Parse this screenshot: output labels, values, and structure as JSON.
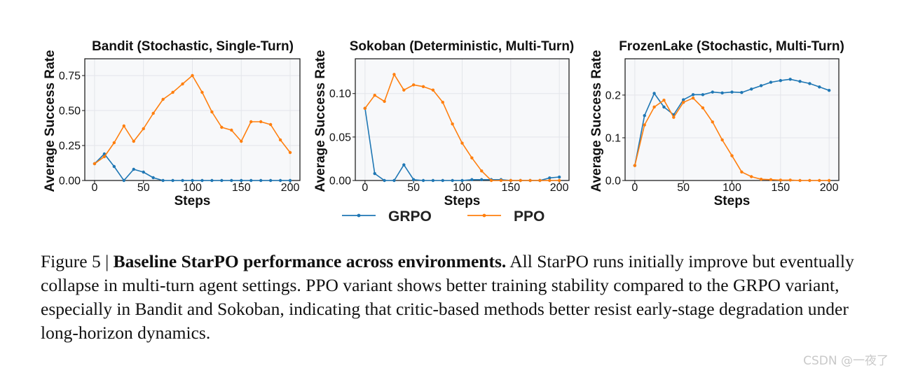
{
  "colors": {
    "grpo": "#1f77b4",
    "ppo": "#ff7f0e",
    "plot_bg": "#f7f8fa",
    "grid": "#e3e5ea"
  },
  "legend": [
    {
      "name": "GRPO",
      "color": "#1f77b4"
    },
    {
      "name": "PPO",
      "color": "#ff7f0e"
    }
  ],
  "chart_data": [
    {
      "type": "line",
      "title": "Bandit (Stochastic, Single-Turn)",
      "xlabel": "Steps",
      "ylabel": "Average Success Rate",
      "xlim": [
        -10,
        210
      ],
      "ylim": [
        0,
        0.87
      ],
      "xticks": [
        0,
        50,
        100,
        150,
        200
      ],
      "xtick_labels": [
        "0",
        "50",
        "100",
        "150",
        "200"
      ],
      "yticks": [
        0,
        0.25,
        0.5,
        0.75
      ],
      "ytick_labels": [
        "0.00",
        "0.25",
        "0.50",
        "0.75"
      ],
      "x": [
        0,
        10,
        20,
        30,
        40,
        50,
        60,
        70,
        80,
        90,
        100,
        110,
        120,
        130,
        140,
        150,
        160,
        170,
        180,
        190,
        200
      ],
      "series": [
        {
          "name": "GRPO",
          "values": [
            0.12,
            0.19,
            0.1,
            0.0,
            0.08,
            0.06,
            0.02,
            0.0,
            0.0,
            0.0,
            0.0,
            0.0,
            0.0,
            0.0,
            0.0,
            0.0,
            0.0,
            0.0,
            0.0,
            0.0,
            0.0
          ]
        },
        {
          "name": "PPO",
          "values": [
            0.12,
            0.17,
            0.27,
            0.39,
            0.28,
            0.37,
            0.48,
            0.58,
            0.63,
            0.69,
            0.75,
            0.63,
            0.49,
            0.38,
            0.36,
            0.28,
            0.42,
            0.42,
            0.4,
            0.29,
            0.2
          ]
        }
      ]
    },
    {
      "type": "line",
      "title": "Sokoban (Deterministic, Multi-Turn)",
      "xlabel": "Steps",
      "ylabel": "Average Success Rate",
      "xlim": [
        -10,
        210
      ],
      "ylim": [
        0,
        0.14
      ],
      "xticks": [
        0,
        50,
        100,
        150,
        200
      ],
      "xtick_labels": [
        "0",
        "50",
        "100",
        "150",
        "200"
      ],
      "yticks": [
        0,
        0.05,
        0.1
      ],
      "ytick_labels": [
        "0.00",
        "0.05",
        "0.10"
      ],
      "x": [
        0,
        10,
        20,
        30,
        40,
        50,
        60,
        70,
        80,
        90,
        100,
        110,
        120,
        130,
        140,
        150,
        160,
        170,
        180,
        190,
        200
      ],
      "series": [
        {
          "name": "GRPO",
          "values": [
            0.083,
            0.008,
            0.0,
            0.0,
            0.018,
            0.001,
            0.0,
            0.0,
            0.0,
            0.0,
            0.0,
            0.001,
            0.001,
            0.001,
            0.001,
            0.0,
            0.0,
            0.0,
            0.0,
            0.003,
            0.004
          ]
        },
        {
          "name": "PPO",
          "values": [
            0.083,
            0.098,
            0.091,
            0.122,
            0.104,
            0.11,
            0.108,
            0.104,
            0.09,
            0.065,
            0.043,
            0.026,
            0.011,
            0.0,
            0.0,
            0.0,
            0.0,
            0.0,
            0.0,
            0.0,
            0.0
          ]
        }
      ]
    },
    {
      "type": "line",
      "title": "FrozenLake (Stochastic, Multi-Turn)",
      "xlabel": "Steps",
      "ylabel": "Average Success Rate",
      "xlim": [
        -10,
        210
      ],
      "ylim": [
        0,
        0.285
      ],
      "xticks": [
        0,
        50,
        100,
        150,
        200
      ],
      "xtick_labels": [
        "0",
        "50",
        "100",
        "150",
        "200"
      ],
      "yticks": [
        0,
        0.1,
        0.2
      ],
      "ytick_labels": [
        "0.0",
        "0.1",
        "0.2"
      ],
      "x": [
        0,
        10,
        20,
        30,
        40,
        50,
        60,
        70,
        80,
        90,
        100,
        110,
        120,
        130,
        140,
        150,
        160,
        170,
        180,
        190,
        200
      ],
      "series": [
        {
          "name": "GRPO",
          "values": [
            0.035,
            0.152,
            0.204,
            0.172,
            0.154,
            0.189,
            0.201,
            0.201,
            0.207,
            0.205,
            0.207,
            0.206,
            0.214,
            0.222,
            0.23,
            0.234,
            0.237,
            0.232,
            0.227,
            0.219,
            0.211
          ]
        },
        {
          "name": "PPO",
          "values": [
            0.035,
            0.13,
            0.172,
            0.188,
            0.148,
            0.183,
            0.193,
            0.17,
            0.137,
            0.095,
            0.058,
            0.02,
            0.009,
            0.003,
            0.002,
            0.001,
            0.001,
            0.0,
            0.0,
            0.0,
            0.0
          ]
        }
      ]
    }
  ],
  "caption": {
    "prefix": "Figure 5 | ",
    "title": "Baseline StarPO performance across environments.",
    "body": " All StarPO runs initially improve but eventually collapse in multi-turn agent settings. PPO variant shows better training stability compared to the GRPO variant, especially in Bandit and Sokoban, indicating that critic-based methods better resist early-stage degradation under long-horizon dynamics."
  },
  "watermark": "CSDN @一夜了"
}
